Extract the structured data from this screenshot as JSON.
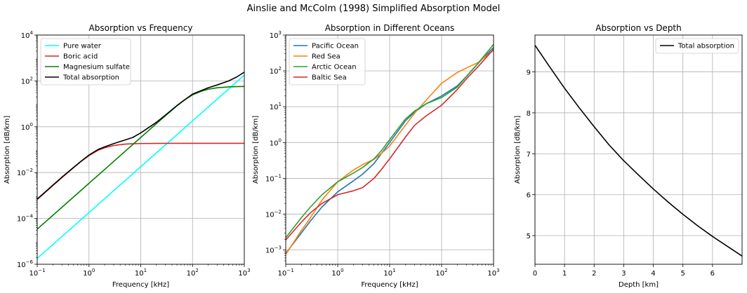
{
  "figure": {
    "suptitle": "Ainslie and McColm (1998) Simplified Absorption Model"
  },
  "chart_data": [
    {
      "type": "line",
      "title": "Absorption vs Frequency",
      "xlabel": "Frequency [kHz]",
      "ylabel": "Absorption [dB/km]",
      "xscale": "log",
      "yscale": "log",
      "xlim": [
        0.1,
        1000
      ],
      "ylim": [
        1e-06,
        10000
      ],
      "grid": true,
      "legend": "top-left",
      "xticks": [
        {
          "value": 0.1,
          "base": "10",
          "exp": "−1"
        },
        {
          "value": 1,
          "base": "10",
          "exp": "0"
        },
        {
          "value": 10,
          "base": "10",
          "exp": "1"
        },
        {
          "value": 100,
          "base": "10",
          "exp": "2"
        },
        {
          "value": 1000,
          "base": "10",
          "exp": "3"
        }
      ],
      "yticks": [
        {
          "value": 1e-06,
          "base": "10",
          "exp": "−6"
        },
        {
          "value": 0.0001,
          "base": "10",
          "exp": "−4"
        },
        {
          "value": 0.01,
          "base": "10",
          "exp": "−2"
        },
        {
          "value": 1,
          "base": "10",
          "exp": "0"
        },
        {
          "value": 100,
          "base": "10",
          "exp": "2"
        },
        {
          "value": 10000,
          "base": "10",
          "exp": "4"
        }
      ],
      "series": [
        {
          "name": "Pure water",
          "color": "#00ffff",
          "x": [
            0.1,
            0.3,
            1,
            3,
            10,
            30,
            100,
            300,
            1000
          ],
          "y": [
            1.8e-06,
            1.62e-05,
            0.00018,
            0.00162,
            0.018,
            0.162,
            1.8,
            16.2,
            180
          ]
        },
        {
          "name": "Boric acid",
          "color": "#d62728",
          "x": [
            0.1,
            0.2,
            0.3,
            0.5,
            0.7,
            1,
            1.5,
            2,
            3,
            5,
            7,
            10,
            20,
            50,
            100,
            300,
            1000
          ],
          "y": [
            0.00067,
            0.0027,
            0.006,
            0.0162,
            0.0305,
            0.055,
            0.0937,
            0.12,
            0.152,
            0.175,
            0.181,
            0.185,
            0.188,
            0.189,
            0.189,
            0.189,
            0.189
          ]
        },
        {
          "name": "Magnesium sulfate",
          "color": "#008000",
          "x": [
            0.1,
            0.3,
            1,
            3,
            10,
            20,
            30,
            50,
            70,
            100,
            150,
            200,
            300,
            500,
            700,
            1000
          ],
          "y": [
            3.4e-05,
            0.000306,
            0.0034,
            0.0306,
            0.34,
            1.36,
            3.03,
            8.2,
            14.9,
            24.6,
            35.9,
            43.2,
            50.3,
            55.0,
            56.4,
            57.3
          ]
        },
        {
          "name": "Total absorption",
          "color": "#000000",
          "x": [
            0.1,
            0.2,
            0.3,
            0.5,
            0.7,
            1,
            1.5,
            2,
            3,
            5,
            7,
            10,
            20,
            30,
            50,
            100,
            200,
            300,
            500,
            700,
            1000
          ],
          "y": [
            0.0007,
            0.0028,
            0.0063,
            0.0166,
            0.031,
            0.058,
            0.102,
            0.133,
            0.184,
            0.266,
            0.34,
            0.54,
            1.55,
            3.23,
            8.4,
            26.5,
            50,
            66.5,
            100,
            145,
            240
          ]
        }
      ]
    },
    {
      "type": "line",
      "title": "Absorption in Different Oceans",
      "xlabel": "Frequency [kHz]",
      "ylabel": "Absorption [dB/km]",
      "xscale": "log",
      "yscale": "log",
      "xlim": [
        0.1,
        1000
      ],
      "ylim": [
        0.0004,
        1000
      ],
      "grid": true,
      "legend": "top-left",
      "xticks": [
        {
          "value": 0.1,
          "base": "10",
          "exp": "−1"
        },
        {
          "value": 1,
          "base": "10",
          "exp": "0"
        },
        {
          "value": 10,
          "base": "10",
          "exp": "1"
        },
        {
          "value": 100,
          "base": "10",
          "exp": "2"
        },
        {
          "value": 1000,
          "base": "10",
          "exp": "3"
        }
      ],
      "yticks": [
        {
          "value": 0.001,
          "base": "10",
          "exp": "−3"
        },
        {
          "value": 0.01,
          "base": "10",
          "exp": "−2"
        },
        {
          "value": 0.1,
          "base": "10",
          "exp": "−1"
        },
        {
          "value": 1,
          "base": "10",
          "exp": "0"
        },
        {
          "value": 10,
          "base": "10",
          "exp": "1"
        },
        {
          "value": 100,
          "base": "10",
          "exp": "2"
        },
        {
          "value": 1000,
          "base": "10",
          "exp": "3"
        }
      ],
      "series": [
        {
          "name": "Pacific Ocean",
          "color": "#1f77b4",
          "x": [
            0.1,
            0.2,
            0.3,
            0.5,
            1,
            2,
            3,
            5,
            7,
            10,
            20,
            30,
            50,
            100,
            200,
            300,
            500,
            1000
          ],
          "y": [
            0.0008,
            0.003,
            0.0065,
            0.016,
            0.042,
            0.085,
            0.13,
            0.26,
            0.5,
            1.0,
            4.0,
            7.0,
            12.0,
            20.0,
            38.0,
            70.0,
            160.0,
            450.0
          ]
        },
        {
          "name": "Red Sea",
          "color": "#ff7f0e",
          "x": [
            0.1,
            0.2,
            0.3,
            0.5,
            1,
            2,
            3,
            5,
            7,
            10,
            20,
            30,
            50,
            100,
            200,
            300,
            500,
            1000
          ],
          "y": [
            0.00075,
            0.0035,
            0.008,
            0.025,
            0.08,
            0.17,
            0.24,
            0.34,
            0.5,
            0.8,
            3.0,
            6.5,
            15.0,
            45.0,
            90.0,
            120.0,
            170.0,
            380.0
          ]
        },
        {
          "name": "Arctic Ocean",
          "color": "#2ca02c",
          "x": [
            0.1,
            0.2,
            0.3,
            0.5,
            1,
            2,
            3,
            5,
            7,
            10,
            20,
            30,
            50,
            100,
            200,
            300,
            500,
            1000
          ],
          "y": [
            0.0022,
            0.008,
            0.016,
            0.035,
            0.08,
            0.14,
            0.2,
            0.35,
            0.6,
            1.2,
            4.5,
            7.5,
            12.0,
            18.0,
            35.0,
            70.0,
            160.0,
            550.0
          ]
        },
        {
          "name": "Baltic Sea",
          "color": "#d62728",
          "x": [
            0.1,
            0.2,
            0.3,
            0.5,
            1,
            2,
            3,
            5,
            7,
            10,
            20,
            30,
            50,
            100,
            200,
            300,
            500,
            1000
          ],
          "y": [
            0.0019,
            0.006,
            0.011,
            0.02,
            0.035,
            0.045,
            0.055,
            0.1,
            0.18,
            0.35,
            1.4,
            3.0,
            5.5,
            11.0,
            30.0,
            60.0,
            130.0,
            400.0
          ]
        }
      ]
    },
    {
      "type": "line",
      "title": "Absorption vs Depth",
      "xlabel": "Depth [km]",
      "ylabel": "Absorption [dB/km]",
      "xscale": "linear",
      "yscale": "linear",
      "xlim": [
        0,
        7
      ],
      "ylim": [
        4.3,
        9.9
      ],
      "grid": true,
      "legend": "top-right",
      "xticks": [
        {
          "value": 0,
          "label": "0"
        },
        {
          "value": 1,
          "label": "1"
        },
        {
          "value": 2,
          "label": "2"
        },
        {
          "value": 3,
          "label": "3"
        },
        {
          "value": 4,
          "label": "4"
        },
        {
          "value": 5,
          "label": "5"
        },
        {
          "value": 6,
          "label": "6"
        }
      ],
      "yticks": [
        {
          "value": 5,
          "label": "5"
        },
        {
          "value": 6,
          "label": "6"
        },
        {
          "value": 7,
          "label": "7"
        },
        {
          "value": 8,
          "label": "8"
        },
        {
          "value": 9,
          "label": "9"
        }
      ],
      "series": [
        {
          "name": "Total absorption",
          "color": "#000000",
          "x": [
            0,
            0.5,
            1,
            1.5,
            2,
            2.5,
            3,
            3.5,
            4,
            4.5,
            5,
            5.5,
            6,
            6.5,
            7
          ],
          "y": [
            9.65,
            9.12,
            8.6,
            8.12,
            7.66,
            7.22,
            6.83,
            6.48,
            6.14,
            5.82,
            5.52,
            5.24,
            4.98,
            4.74,
            4.5
          ]
        }
      ]
    }
  ]
}
